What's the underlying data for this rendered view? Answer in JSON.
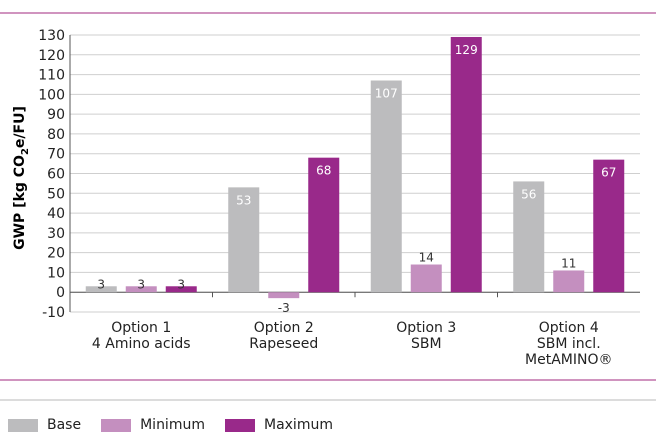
{
  "chart_data": {
    "type": "bar",
    "categories": [
      [
        "Option 1",
        "4 Amino acids"
      ],
      [
        "Option 2",
        "Rapeseed"
      ],
      [
        "Option 3",
        "SBM"
      ],
      [
        "Option 4",
        "SBM incl.",
        "MetAMINO®"
      ]
    ],
    "series": [
      {
        "name": "Base",
        "values": [
          3,
          53,
          107,
          56
        ],
        "labels": [
          "3",
          "53",
          "107",
          "56"
        ]
      },
      {
        "name": "Minimum",
        "values": [
          3,
          -3,
          14,
          11
        ],
        "labels": [
          "3",
          "-3",
          "14",
          "11"
        ]
      },
      {
        "name": "Maximum",
        "values": [
          3,
          68,
          129,
          67
        ],
        "labels": [
          "3",
          "68",
          "129",
          "67"
        ]
      }
    ],
    "ylim": [
      -10,
      130
    ],
    "yticks": [
      -10,
      0,
      10,
      20,
      30,
      40,
      50,
      60,
      70,
      80,
      90,
      100,
      110,
      120,
      130
    ],
    "ylabel": {
      "pre": "GWP [kg CO",
      "sub": "2",
      "post": "e/FU]"
    },
    "grid": true,
    "legend_position": "bottom-left"
  },
  "colors": {
    "base": "#bcbcbe",
    "minimum": "#c48fbf",
    "maximum": "#99298a",
    "accent_rule": "#a0287f",
    "axis_label": "#a0287f",
    "grid": "#cfcfcf"
  }
}
